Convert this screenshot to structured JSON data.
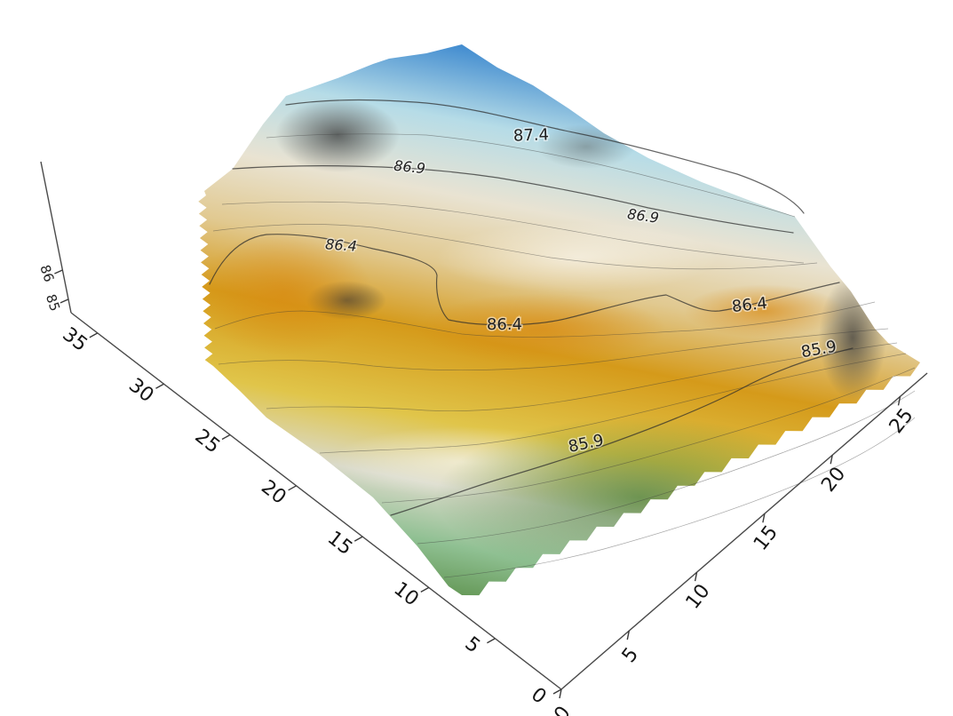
{
  "chart_data": {
    "type": "surface",
    "title": "",
    "xlabel": "",
    "ylabel": "",
    "zlabel": "",
    "x_axis": {
      "ticks": [
        "0",
        "5",
        "10",
        "15",
        "20",
        "25"
      ],
      "range": [
        0,
        27
      ]
    },
    "y_axis": {
      "ticks": [
        "0",
        "5",
        "10",
        "15",
        "20",
        "25",
        "30",
        "35"
      ],
      "range": [
        0,
        37
      ]
    },
    "z_axis": {
      "ticks": [
        "85",
        "86"
      ],
      "range": [
        84.8,
        88.0
      ]
    },
    "contours": [
      {
        "level": 85.9,
        "label": "85.9"
      },
      {
        "level": 85.9,
        "label": "85.9"
      },
      {
        "level": 86.4,
        "label": "86.4"
      },
      {
        "level": 86.4,
        "label": "86.4"
      },
      {
        "level": 86.4,
        "label": "86.4"
      },
      {
        "level": 86.9,
        "label": "86.9"
      },
      {
        "level": 86.9,
        "label": "86.9"
      },
      {
        "level": 87.4,
        "label": "87.4"
      }
    ],
    "colormap": [
      {
        "level": 85.0,
        "color": "#4f7f3a"
      },
      {
        "level": 85.9,
        "color": "#8fbf8b"
      },
      {
        "level": 86.2,
        "color": "#e6c24a"
      },
      {
        "level": 86.5,
        "color": "#d89a1a"
      },
      {
        "level": 86.9,
        "color": "#e8dcc0"
      },
      {
        "level": 87.3,
        "color": "#bfe0ea"
      },
      {
        "level": 87.8,
        "color": "#2a78c8"
      }
    ],
    "grid": false,
    "legend": "none"
  }
}
